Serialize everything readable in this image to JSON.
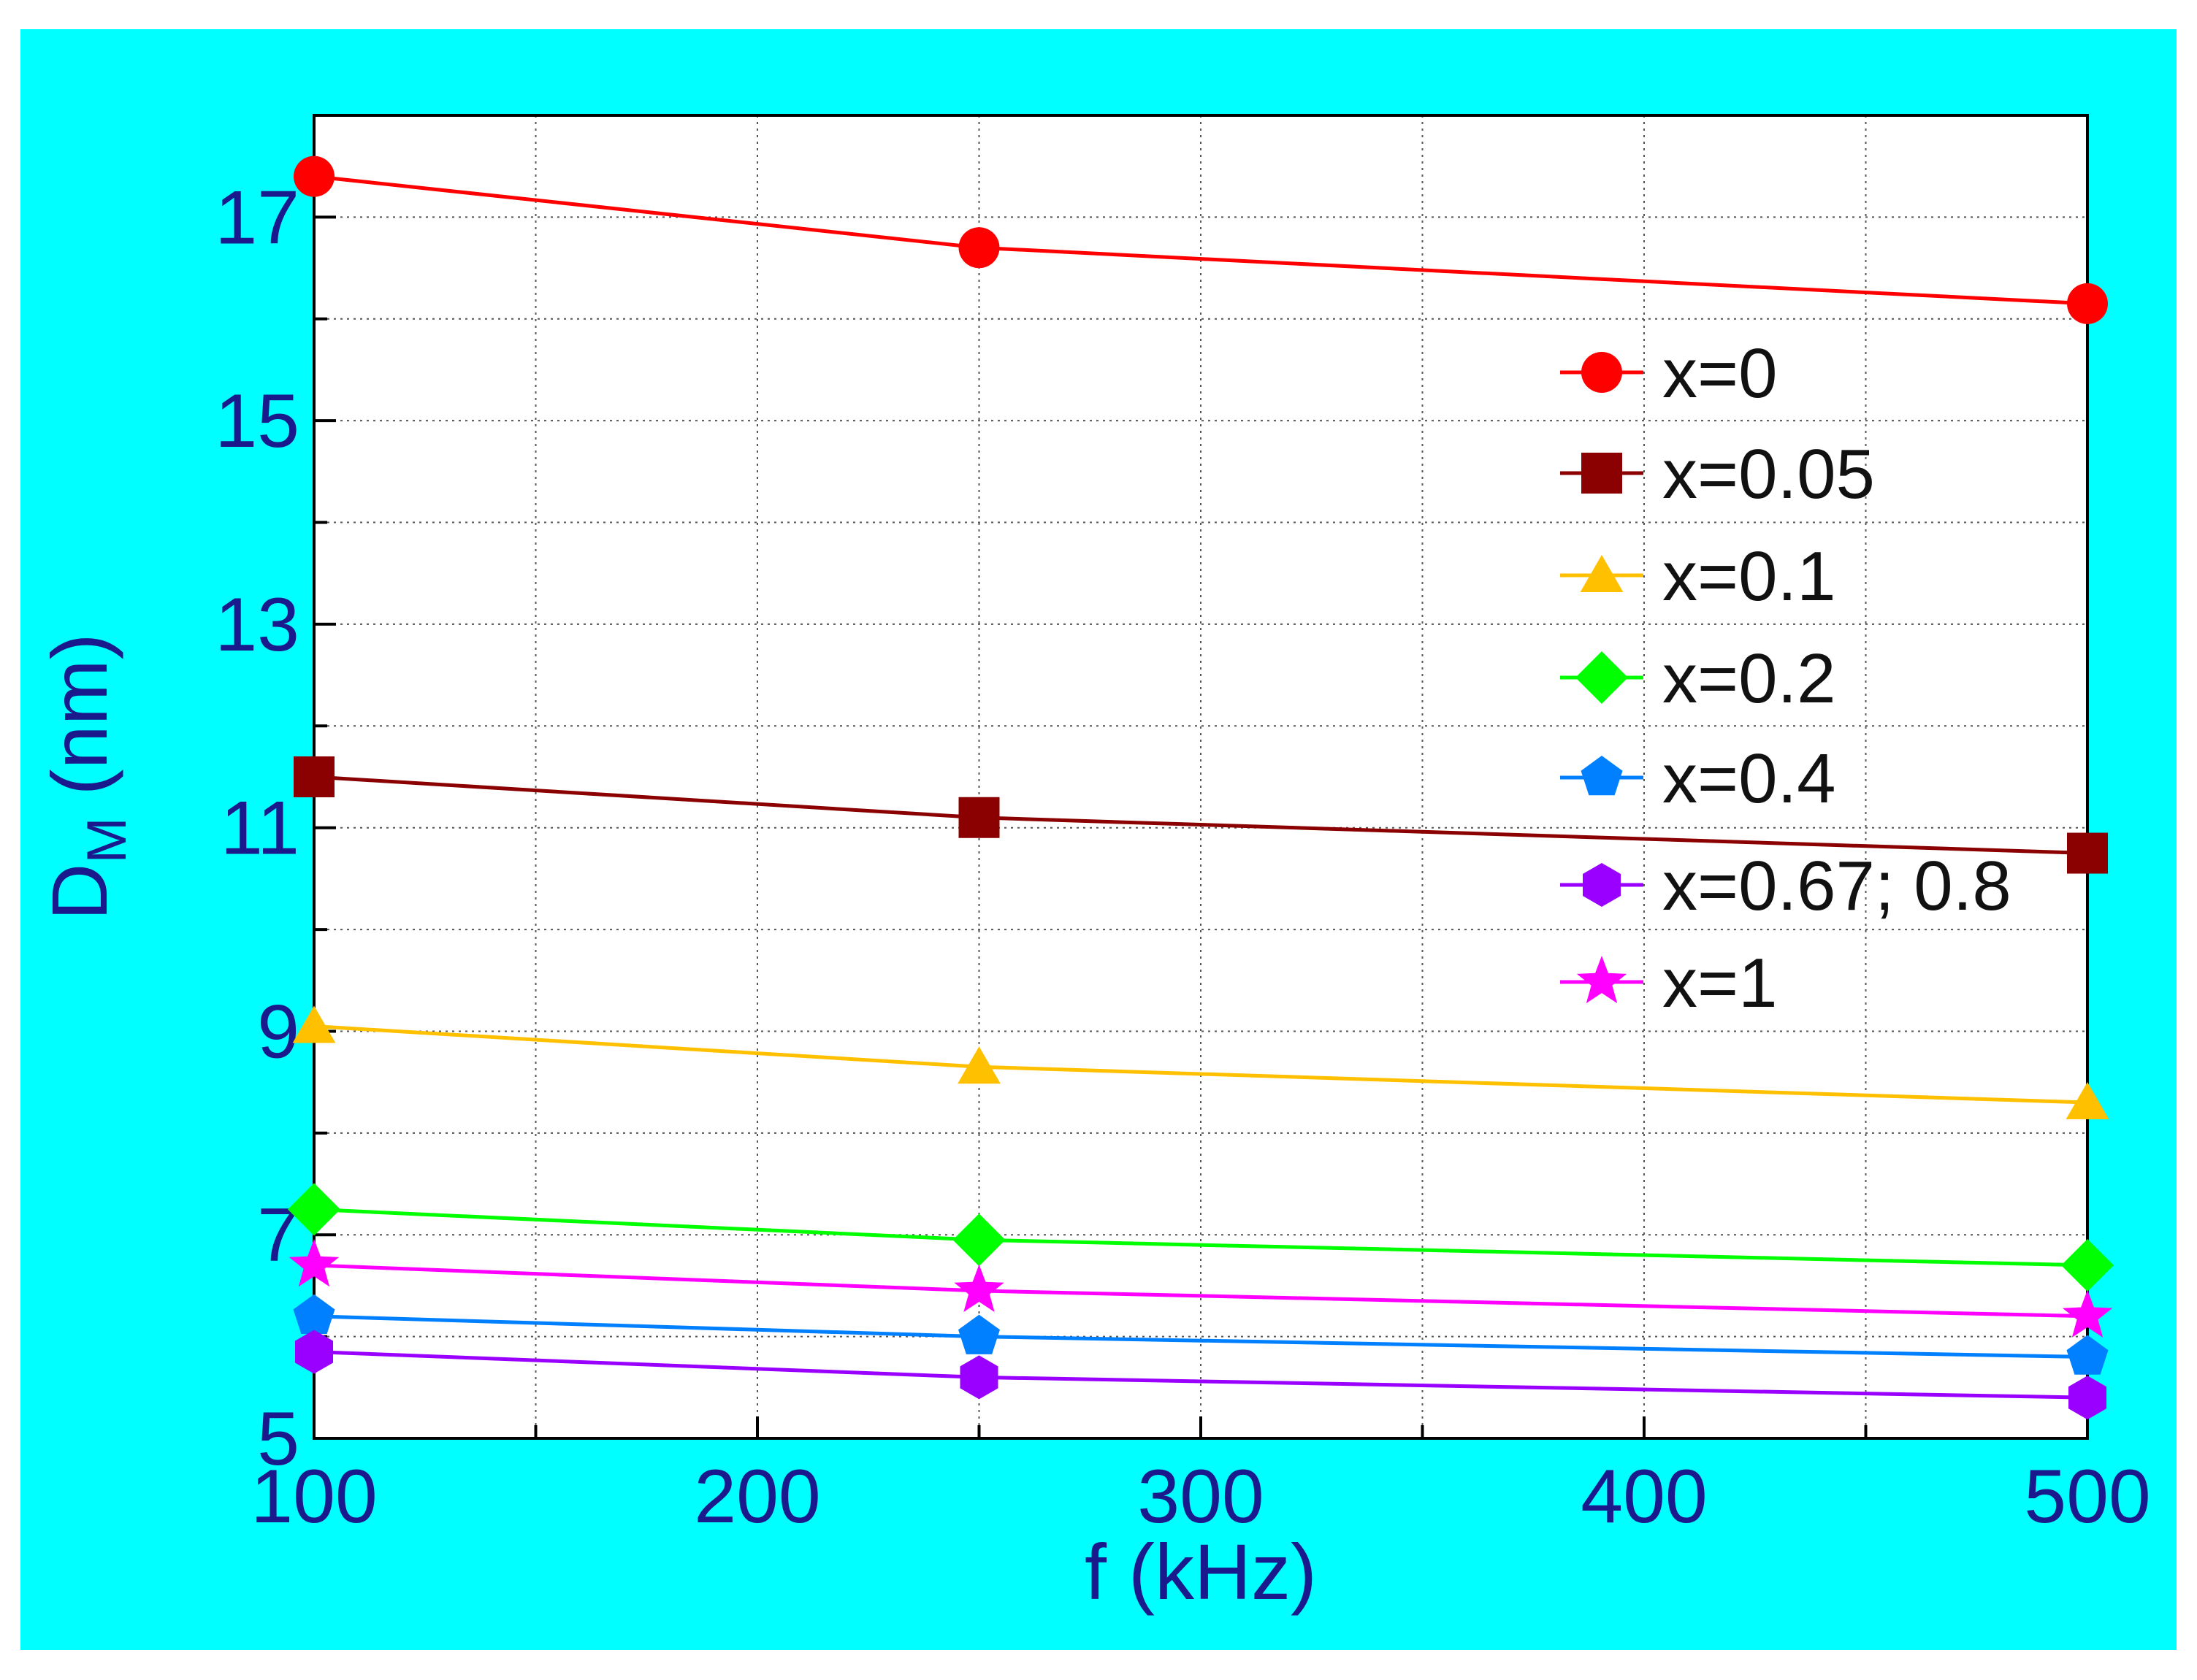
{
  "chart_data": {
    "type": "line",
    "title": "",
    "xlabel": "f (kHz)",
    "ylabel_main": "D",
    "ylabel_sub": "M",
    "ylabel_unit": " (nm)",
    "xlim": [
      100,
      500
    ],
    "ylim": [
      5,
      18
    ],
    "xticks": [
      100,
      200,
      300,
      400,
      500
    ],
    "xtick_labels": [
      "100",
      "200",
      "300",
      "400",
      "500"
    ],
    "yticks": [
      5,
      7,
      9,
      11,
      13,
      15,
      17
    ],
    "ytick_labels": [
      "5",
      "7",
      "9",
      "11",
      "13",
      "15",
      "17"
    ],
    "grid": true,
    "legend_position": "right",
    "x": [
      100,
      250,
      500
    ],
    "series": [
      {
        "name": "x=0",
        "values": [
          17.4,
          16.7,
          16.15
        ],
        "color": "#ff0000",
        "marker": "circle"
      },
      {
        "name": "x=0.05",
        "values": [
          11.5,
          11.1,
          10.75
        ],
        "color": "#8b0000",
        "marker": "square"
      },
      {
        "name": "x=0.1",
        "values": [
          9.05,
          8.65,
          8.3
        ],
        "color": "#ffc000",
        "marker": "triangle"
      },
      {
        "name": "x=0.2",
        "values": [
          7.25,
          6.95,
          6.7
        ],
        "color": "#00ff00",
        "marker": "diamond"
      },
      {
        "name": "x=0.4",
        "values": [
          6.2,
          6.0,
          5.8
        ],
        "color": "#0080ff",
        "marker": "pentagon"
      },
      {
        "name": "x=0.67; 0.8",
        "values": [
          5.85,
          5.6,
          5.4
        ],
        "color": "#9900ff",
        "marker": "hexagon"
      },
      {
        "name": "x=1",
        "values": [
          6.7,
          6.45,
          6.2
        ],
        "color": "#ff00ff",
        "marker": "star"
      }
    ]
  }
}
